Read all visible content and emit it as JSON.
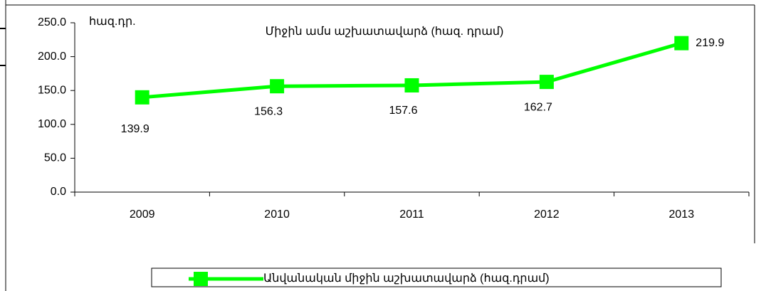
{
  "chart_data": {
    "type": "line",
    "title": "Միջին ամս աշխատավարձ (հազ. դրամ)",
    "y_axis_label": "հազ.դր.",
    "categories": [
      "2009",
      "2010",
      "2011",
      "2012",
      "2013"
    ],
    "series": [
      {
        "name": "Անվանական միջին աշխատավարձ (հազ.դրամ)",
        "color": "#00ff00",
        "values": [
          139.9,
          156.3,
          157.6,
          162.7,
          219.9
        ]
      }
    ],
    "ylim": [
      0,
      250
    ],
    "yticks": [
      {
        "value": 0,
        "label": "0.0"
      },
      {
        "value": 50,
        "label": "50.0"
      },
      {
        "value": 100,
        "label": "100.0"
      },
      {
        "value": 150,
        "label": "150.0"
      },
      {
        "value": 200,
        "label": "200.0"
      },
      {
        "value": 250,
        "label": "250.0"
      }
    ],
    "grid": false,
    "legend": "bottom"
  }
}
